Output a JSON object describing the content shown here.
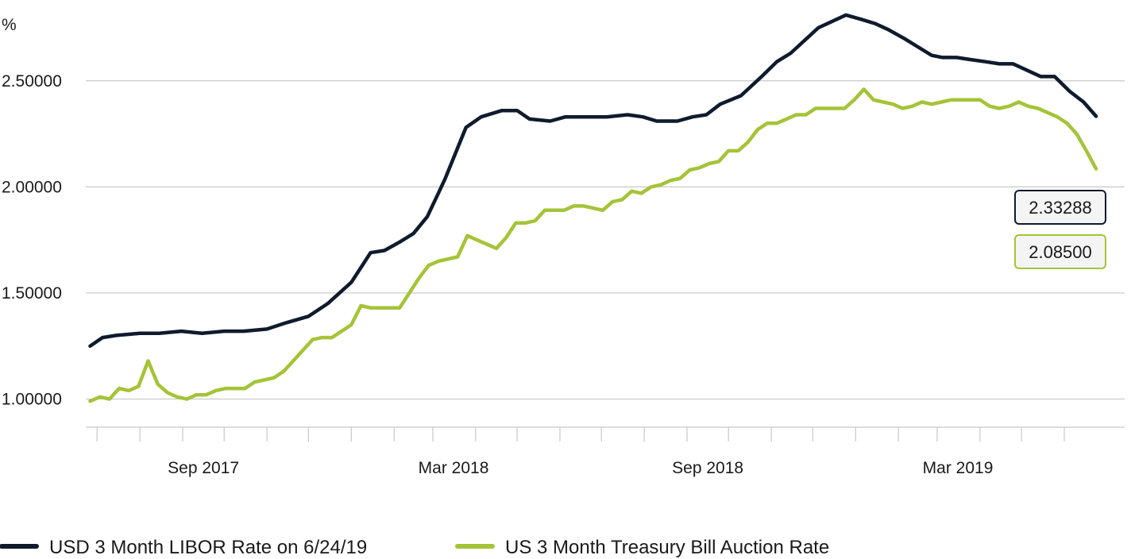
{
  "chart_data": {
    "type": "line",
    "unit_label": "%",
    "ylim": [
      0.8,
      2.8
    ],
    "y_ticks": [
      1.0,
      1.5,
      2.0,
      2.5
    ],
    "y_tick_labels": [
      "1.00000",
      "1.50000",
      "2.00000",
      "2.50000"
    ],
    "x_range": [
      "2017-06-24",
      "2019-06-24"
    ],
    "x_ticks": [
      "Sep 2017",
      "Mar 2018",
      "Sep 2018",
      "Mar 2019"
    ],
    "grid": true,
    "legend_placement": "bottom",
    "series": [
      {
        "name": "USD 3 Month LIBOR Rate on 6/24/19",
        "color": "#0f1b2d",
        "end_label": "2.33288",
        "points": [
          [
            "2017-06-26",
            1.25
          ],
          [
            "2017-07-05",
            1.29
          ],
          [
            "2017-07-15",
            1.3
          ],
          [
            "2017-08-01",
            1.31
          ],
          [
            "2017-08-15",
            1.31
          ],
          [
            "2017-08-31",
            1.32
          ],
          [
            "2017-09-15",
            1.31
          ],
          [
            "2017-10-01",
            1.32
          ],
          [
            "2017-10-15",
            1.32
          ],
          [
            "2017-11-01",
            1.33
          ],
          [
            "2017-11-15",
            1.36
          ],
          [
            "2017-12-01",
            1.39
          ],
          [
            "2017-12-15",
            1.45
          ],
          [
            "2018-01-01",
            1.55
          ],
          [
            "2018-01-10",
            1.64
          ],
          [
            "2018-01-15",
            1.69
          ],
          [
            "2018-01-25",
            1.7
          ],
          [
            "2018-02-05",
            1.74
          ],
          [
            "2018-02-15",
            1.78
          ],
          [
            "2018-02-25",
            1.86
          ],
          [
            "2018-03-05",
            1.97
          ],
          [
            "2018-03-10",
            2.04
          ],
          [
            "2018-03-20",
            2.2
          ],
          [
            "2018-03-25",
            2.28
          ],
          [
            "2018-04-05",
            2.33
          ],
          [
            "2018-04-20",
            2.36
          ],
          [
            "2018-05-01",
            2.36
          ],
          [
            "2018-05-10",
            2.32
          ],
          [
            "2018-05-25",
            2.31
          ],
          [
            "2018-06-05",
            2.33
          ],
          [
            "2018-06-20",
            2.33
          ],
          [
            "2018-07-05",
            2.33
          ],
          [
            "2018-07-20",
            2.34
          ],
          [
            "2018-07-31",
            2.33
          ],
          [
            "2018-08-10",
            2.31
          ],
          [
            "2018-08-25",
            2.31
          ],
          [
            "2018-09-05",
            2.33
          ],
          [
            "2018-09-15",
            2.34
          ],
          [
            "2018-09-25",
            2.39
          ],
          [
            "2018-10-10",
            2.43
          ],
          [
            "2018-10-25",
            2.52
          ],
          [
            "2018-11-05",
            2.59
          ],
          [
            "2018-11-15",
            2.63
          ],
          [
            "2018-11-25",
            2.69
          ],
          [
            "2018-12-05",
            2.75
          ],
          [
            "2018-12-15",
            2.78
          ],
          [
            "2018-12-25",
            2.81
          ],
          [
            "2019-01-05",
            2.79
          ],
          [
            "2019-01-15",
            2.77
          ],
          [
            "2019-01-25",
            2.74
          ],
          [
            "2019-02-05",
            2.7
          ],
          [
            "2019-02-15",
            2.66
          ],
          [
            "2019-02-25",
            2.62
          ],
          [
            "2019-03-05",
            2.61
          ],
          [
            "2019-03-15",
            2.61
          ],
          [
            "2019-03-25",
            2.6
          ],
          [
            "2019-04-05",
            2.59
          ],
          [
            "2019-04-15",
            2.58
          ],
          [
            "2019-04-25",
            2.58
          ],
          [
            "2019-05-05",
            2.55
          ],
          [
            "2019-05-15",
            2.52
          ],
          [
            "2019-05-25",
            2.52
          ],
          [
            "2019-06-05",
            2.45
          ],
          [
            "2019-06-15",
            2.4
          ],
          [
            "2019-06-24",
            2.33288
          ]
        ]
      },
      {
        "name": "US 3 Month Treasury Bill Auction Rate",
        "color": "#a5c339",
        "end_label": "2.08500",
        "points": [
          [
            "2017-06-26",
            0.99
          ],
          [
            "2017-07-03",
            1.01
          ],
          [
            "2017-07-10",
            1.0
          ],
          [
            "2017-07-17",
            1.05
          ],
          [
            "2017-07-24",
            1.04
          ],
          [
            "2017-07-31",
            1.06
          ],
          [
            "2017-08-07",
            1.18
          ],
          [
            "2017-08-14",
            1.07
          ],
          [
            "2017-08-21",
            1.03
          ],
          [
            "2017-08-28",
            1.01
          ],
          [
            "2017-09-04",
            1.0
          ],
          [
            "2017-09-11",
            1.02
          ],
          [
            "2017-09-18",
            1.02
          ],
          [
            "2017-09-25",
            1.04
          ],
          [
            "2017-10-02",
            1.05
          ],
          [
            "2017-10-09",
            1.05
          ],
          [
            "2017-10-16",
            1.05
          ],
          [
            "2017-10-23",
            1.08
          ],
          [
            "2017-10-30",
            1.09
          ],
          [
            "2017-11-06",
            1.1
          ],
          [
            "2017-11-13",
            1.13
          ],
          [
            "2017-11-20",
            1.18
          ],
          [
            "2017-11-27",
            1.23
          ],
          [
            "2017-12-04",
            1.28
          ],
          [
            "2017-12-11",
            1.29
          ],
          [
            "2017-12-18",
            1.29
          ],
          [
            "2017-12-25",
            1.32
          ],
          [
            "2018-01-01",
            1.35
          ],
          [
            "2018-01-08",
            1.44
          ],
          [
            "2018-01-15",
            1.43
          ],
          [
            "2018-01-22",
            1.43
          ],
          [
            "2018-01-29",
            1.43
          ],
          [
            "2018-02-05",
            1.43
          ],
          [
            "2018-02-12",
            1.5
          ],
          [
            "2018-02-19",
            1.57
          ],
          [
            "2018-02-26",
            1.63
          ],
          [
            "2018-03-05",
            1.65
          ],
          [
            "2018-03-12",
            1.66
          ],
          [
            "2018-03-19",
            1.67
          ],
          [
            "2018-03-26",
            1.77
          ],
          [
            "2018-04-02",
            1.75
          ],
          [
            "2018-04-09",
            1.73
          ],
          [
            "2018-04-16",
            1.71
          ],
          [
            "2018-04-23",
            1.76
          ],
          [
            "2018-04-30",
            1.83
          ],
          [
            "2018-05-07",
            1.83
          ],
          [
            "2018-05-14",
            1.84
          ],
          [
            "2018-05-21",
            1.89
          ],
          [
            "2018-05-28",
            1.89
          ],
          [
            "2018-06-04",
            1.89
          ],
          [
            "2018-06-11",
            1.91
          ],
          [
            "2018-06-18",
            1.91
          ],
          [
            "2018-06-25",
            1.9
          ],
          [
            "2018-07-02",
            1.89
          ],
          [
            "2018-07-09",
            1.93
          ],
          [
            "2018-07-16",
            1.94
          ],
          [
            "2018-07-23",
            1.98
          ],
          [
            "2018-07-30",
            1.97
          ],
          [
            "2018-08-06",
            2.0
          ],
          [
            "2018-08-13",
            2.01
          ],
          [
            "2018-08-20",
            2.03
          ],
          [
            "2018-08-27",
            2.04
          ],
          [
            "2018-09-03",
            2.08
          ],
          [
            "2018-09-10",
            2.09
          ],
          [
            "2018-09-17",
            2.11
          ],
          [
            "2018-09-24",
            2.12
          ],
          [
            "2018-10-01",
            2.17
          ],
          [
            "2018-10-08",
            2.17
          ],
          [
            "2018-10-15",
            2.21
          ],
          [
            "2018-10-22",
            2.27
          ],
          [
            "2018-10-29",
            2.3
          ],
          [
            "2018-11-05",
            2.3
          ],
          [
            "2018-11-12",
            2.32
          ],
          [
            "2018-11-19",
            2.34
          ],
          [
            "2018-11-26",
            2.34
          ],
          [
            "2018-12-03",
            2.37
          ],
          [
            "2018-12-10",
            2.37
          ],
          [
            "2018-12-17",
            2.37
          ],
          [
            "2018-12-24",
            2.37
          ],
          [
            "2018-12-31",
            2.41
          ],
          [
            "2019-01-07",
            2.46
          ],
          [
            "2019-01-14",
            2.41
          ],
          [
            "2019-01-21",
            2.4
          ],
          [
            "2019-01-28",
            2.39
          ],
          [
            "2019-02-04",
            2.37
          ],
          [
            "2019-02-11",
            2.38
          ],
          [
            "2019-02-18",
            2.4
          ],
          [
            "2019-02-25",
            2.39
          ],
          [
            "2019-03-04",
            2.4
          ],
          [
            "2019-03-11",
            2.41
          ],
          [
            "2019-03-18",
            2.41
          ],
          [
            "2019-03-25",
            2.41
          ],
          [
            "2019-04-01",
            2.41
          ],
          [
            "2019-04-08",
            2.38
          ],
          [
            "2019-04-15",
            2.37
          ],
          [
            "2019-04-22",
            2.38
          ],
          [
            "2019-04-29",
            2.4
          ],
          [
            "2019-05-06",
            2.38
          ],
          [
            "2019-05-13",
            2.37
          ],
          [
            "2019-05-20",
            2.35
          ],
          [
            "2019-05-27",
            2.33
          ],
          [
            "2019-06-03",
            2.3
          ],
          [
            "2019-06-10",
            2.25
          ],
          [
            "2019-06-17",
            2.17
          ],
          [
            "2019-06-24",
            2.085
          ]
        ]
      }
    ]
  }
}
